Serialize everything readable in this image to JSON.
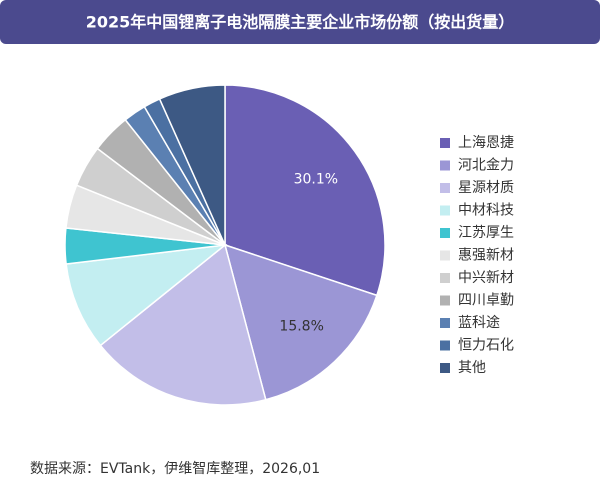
{
  "chart_data": {
    "type": "pie",
    "title": "2025年中国锂离子电池隔膜主要企业市场份额（按出货量）",
    "source": "数据来源：EVTank，伊维智库整理，2026,01",
    "categories": [
      "上海恩捷",
      "河北金力",
      "星源材质",
      "中材科技",
      "江苏厚生",
      "惠强新材",
      "中兴新材",
      "四川卓勤",
      "蓝科途",
      "恒力石化",
      "其他"
    ],
    "values": [
      30.1,
      15.8,
      18.3,
      8.9,
      3.6,
      4.4,
      4.2,
      4.0,
      2.3,
      1.7,
      6.7
    ],
    "value_labels": [
      "30.1%",
      "15.8%",
      null,
      null,
      null,
      null,
      null,
      null,
      null,
      null,
      null
    ],
    "colors": [
      "#6a5fb4",
      "#9b96d5",
      "#c2bee8",
      "#c3eef1",
      "#3fc4d0",
      "#e6e6e6",
      "#cfcfcf",
      "#b1b1b1",
      "#5b80b2",
      "#4b70a2",
      "#3d5984"
    ],
    "legend": "right"
  }
}
